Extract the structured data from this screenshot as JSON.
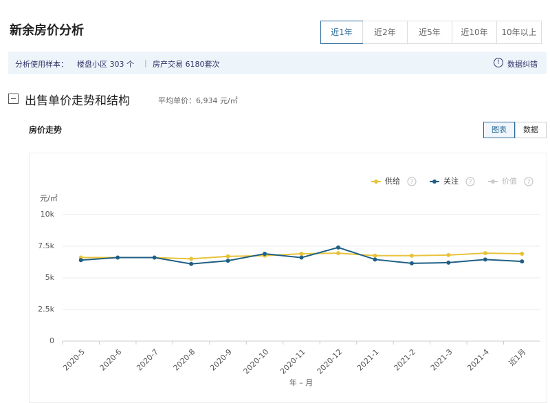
{
  "header": {
    "title": "新余房价分析",
    "tabs": [
      "近1年",
      "近2年",
      "近5年",
      "近10年",
      "10年以上"
    ]
  },
  "info": {
    "label": "分析使用样本：",
    "communities": "楼盘小区 303 个",
    "transactions": "房产交易 6180套次",
    "correction": "数据纠错"
  },
  "section": {
    "title": "出售单价走势和结构",
    "average": "平均单价：6,934 元/㎡",
    "subtitle": "房价走势",
    "buttons": [
      "图表",
      "数据"
    ]
  },
  "chart_data": {
    "type": "line",
    "y_label": "元/㎡",
    "x_label": "年 – 月",
    "categories": [
      "2020-5",
      "2020-6",
      "2020-7",
      "2020-8",
      "2020-9",
      "2020-10",
      "2020-11",
      "2020-12",
      "2021-1",
      "2021-2",
      "2021-3",
      "2021-4",
      "近1月"
    ],
    "series": [
      {
        "name": "供给",
        "color": "#e8c33a",
        "values": [
          6600,
          6600,
          6600,
          6500,
          6700,
          6750,
          6900,
          6950,
          6750,
          6750,
          6800,
          6950,
          6900
        ]
      },
      {
        "name": "关注",
        "color": "#1f5f85",
        "values": [
          6400,
          6600,
          6600,
          6100,
          6350,
          6900,
          6600,
          7400,
          6450,
          6150,
          6200,
          6450,
          6300
        ]
      },
      {
        "name": "价值",
        "color": "#cccccc",
        "values": [
          null,
          null,
          null,
          null,
          null,
          null,
          null,
          null,
          null,
          null,
          null,
          null,
          null
        ]
      }
    ],
    "ylim": [
      0,
      10000
    ],
    "yticks": [
      0,
      {
        "value": 2500,
        "label": "2.5k"
      },
      {
        "value": 5000,
        "label": "5k"
      },
      {
        "value": 7500,
        "label": "7.5k"
      },
      {
        "value": 10000,
        "label": "10k"
      }
    ],
    "grid": true
  }
}
